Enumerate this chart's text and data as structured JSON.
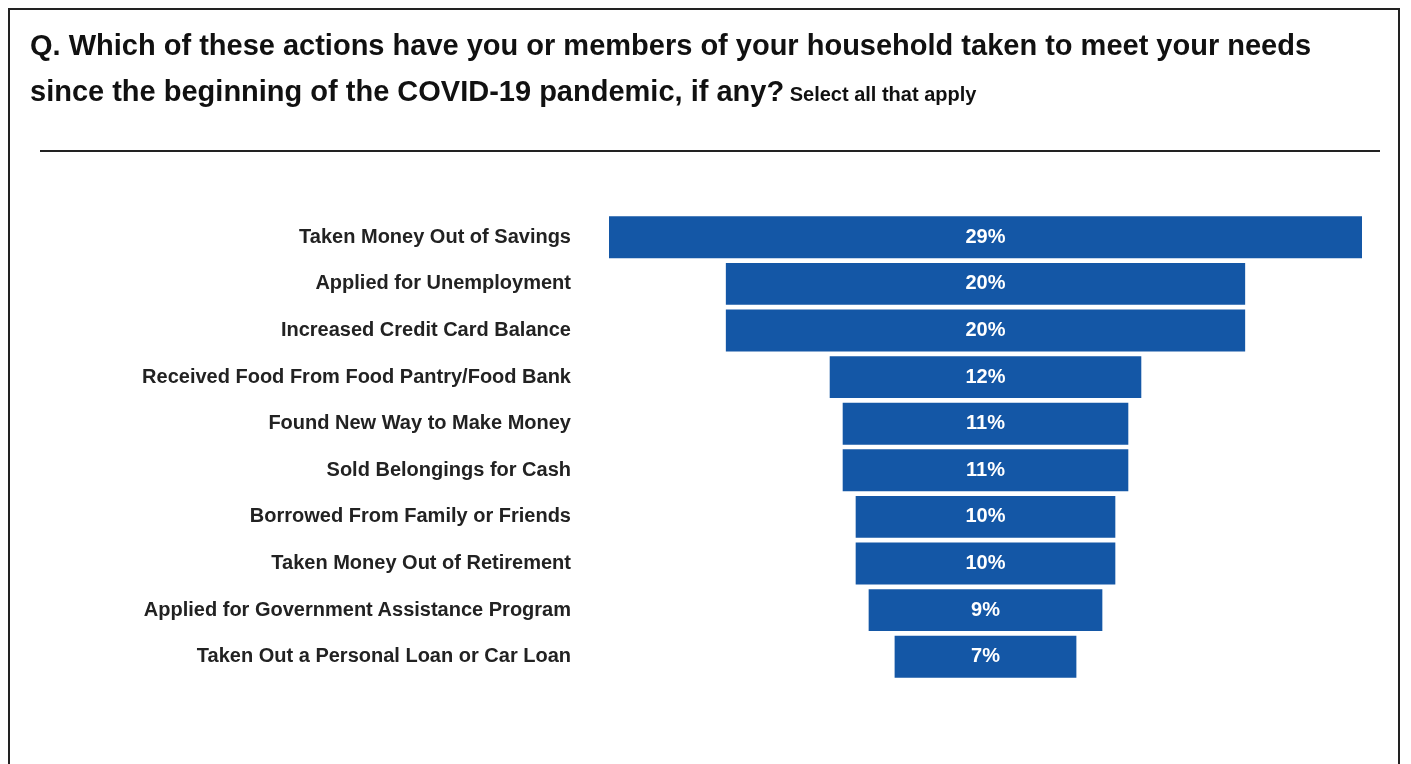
{
  "chart_data": {
    "type": "other",
    "title": "Q. Which of these actions have you or members of your household taken to meet your needs since the beginning of the COVID-19 pandemic, if any?",
    "subtitle": "Select all that apply",
    "categories": [
      "Taken Money Out of Savings",
      "Applied for Unemployment",
      "Increased Credit Card Balance",
      "Received Food From Food Pantry/Food Bank",
      "Found New Way to Make Money",
      "Sold Belongings for Cash",
      "Borrowed From Family or Friends",
      "Taken Money Out of Retirement",
      "Applied for Government Assistance Program",
      "Taken Out a Personal Loan or Car Loan"
    ],
    "values": [
      29,
      20,
      20,
      12,
      11,
      11,
      10,
      10,
      9,
      7
    ],
    "color": "#1457a6",
    "value_labels": [
      "29%",
      "20%",
      "20%",
      "12%",
      "11%",
      "11%",
      "10%",
      "10%",
      "9%",
      "7%"
    ]
  }
}
